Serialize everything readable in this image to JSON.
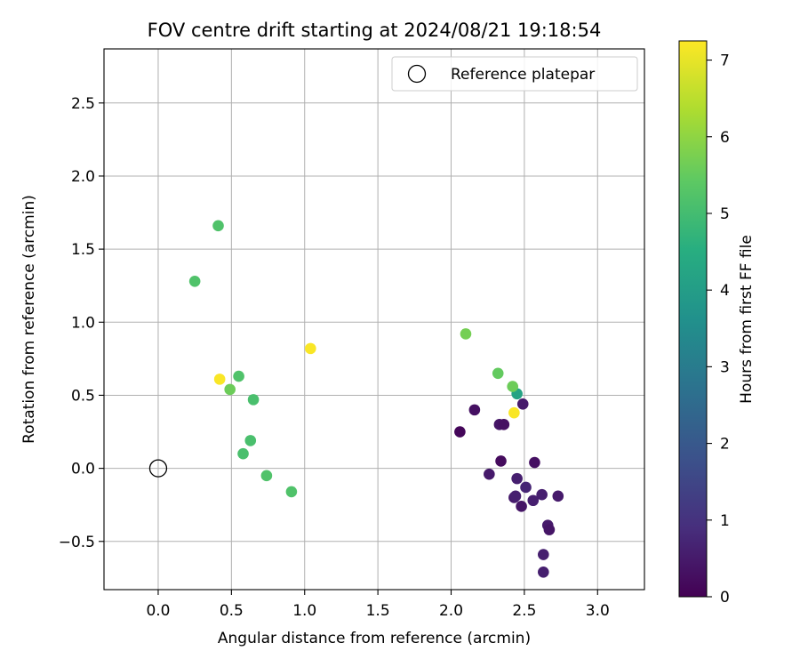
{
  "chart_data": {
    "type": "scatter",
    "title": "FOV centre drift starting at 2024/08/21 19:18:54",
    "xlabel": "Angular distance from reference (arcmin)",
    "ylabel": "Rotation from reference (arcmin)",
    "xlim": [
      -0.37,
      3.32
    ],
    "ylim": [
      -0.83,
      2.87
    ],
    "xticks": [
      0.0,
      0.5,
      1.0,
      1.5,
      2.0,
      2.5,
      3.0
    ],
    "xtick_labels": [
      "0.0",
      "0.5",
      "1.0",
      "1.5",
      "2.0",
      "2.5",
      "3.0"
    ],
    "yticks": [
      -0.5,
      0.0,
      0.5,
      1.0,
      1.5,
      2.0,
      2.5
    ],
    "ytick_labels": [
      "−0.5",
      "0.0",
      "0.5",
      "1.0",
      "1.5",
      "2.0",
      "2.5"
    ],
    "grid": true,
    "legend": {
      "position": "top-right",
      "entries": [
        "Reference platepar"
      ]
    },
    "reference_point": {
      "x": 0.0,
      "y": 0.0,
      "label": "Reference platepar"
    },
    "colorbar": {
      "label": "Hours from first FF file",
      "colormap": "viridis",
      "range": [
        0,
        7.25
      ],
      "ticks": [
        0,
        1,
        2,
        3,
        4,
        5,
        6,
        7
      ],
      "tick_labels": [
        "0",
        "1",
        "2",
        "3",
        "4",
        "5",
        "6",
        "7"
      ]
    },
    "series": [
      {
        "values": [
          {
            "x": 2.06,
            "y": 0.25,
            "c": 0.1
          },
          {
            "x": 2.16,
            "y": 0.4,
            "c": 0.3
          },
          {
            "x": 2.26,
            "y": -0.04,
            "c": 0.5
          },
          {
            "x": 2.33,
            "y": 0.3,
            "c": 0.4
          },
          {
            "x": 2.34,
            "y": 0.05,
            "c": 0.2
          },
          {
            "x": 2.36,
            "y": 0.3,
            "c": 0.3
          },
          {
            "x": 2.43,
            "y": -0.2,
            "c": 0.5
          },
          {
            "x": 2.44,
            "y": -0.19,
            "c": 0.6
          },
          {
            "x": 2.45,
            "y": -0.07,
            "c": 0.6
          },
          {
            "x": 2.48,
            "y": -0.26,
            "c": 0.4
          },
          {
            "x": 2.49,
            "y": 0.44,
            "c": 0.5
          },
          {
            "x": 2.51,
            "y": -0.13,
            "c": 0.7
          },
          {
            "x": 2.56,
            "y": -0.22,
            "c": 0.6
          },
          {
            "x": 2.57,
            "y": 0.04,
            "c": 0.3
          },
          {
            "x": 2.62,
            "y": -0.18,
            "c": 0.6
          },
          {
            "x": 2.63,
            "y": -0.59,
            "c": 0.6
          },
          {
            "x": 2.63,
            "y": -0.71,
            "c": 0.6
          },
          {
            "x": 2.66,
            "y": -0.39,
            "c": 0.5
          },
          {
            "x": 2.67,
            "y": -0.42,
            "c": 0.4
          },
          {
            "x": 2.73,
            "y": -0.19,
            "c": 0.5
          },
          {
            "x": 2.45,
            "y": 0.51,
            "c": 4.2
          },
          {
            "x": 2.1,
            "y": 0.92,
            "c": 5.7
          },
          {
            "x": 2.32,
            "y": 0.65,
            "c": 5.5
          },
          {
            "x": 2.42,
            "y": 0.56,
            "c": 5.6
          },
          {
            "x": 2.43,
            "y": 0.38,
            "c": 7.2
          },
          {
            "x": 0.41,
            "y": 1.66,
            "c": 5.2
          },
          {
            "x": 0.25,
            "y": 1.28,
            "c": 5.2
          },
          {
            "x": 1.04,
            "y": 0.82,
            "c": 7.2
          },
          {
            "x": 0.42,
            "y": 0.61,
            "c": 7.2
          },
          {
            "x": 0.49,
            "y": 0.54,
            "c": 5.6
          },
          {
            "x": 0.55,
            "y": 0.63,
            "c": 5.2
          },
          {
            "x": 0.65,
            "y": 0.47,
            "c": 5.1
          },
          {
            "x": 0.63,
            "y": 0.19,
            "c": 5.1
          },
          {
            "x": 0.58,
            "y": 0.1,
            "c": 5.1
          },
          {
            "x": 0.74,
            "y": -0.05,
            "c": 5.2
          },
          {
            "x": 0.91,
            "y": -0.16,
            "c": 5.2
          }
        ]
      }
    ]
  }
}
